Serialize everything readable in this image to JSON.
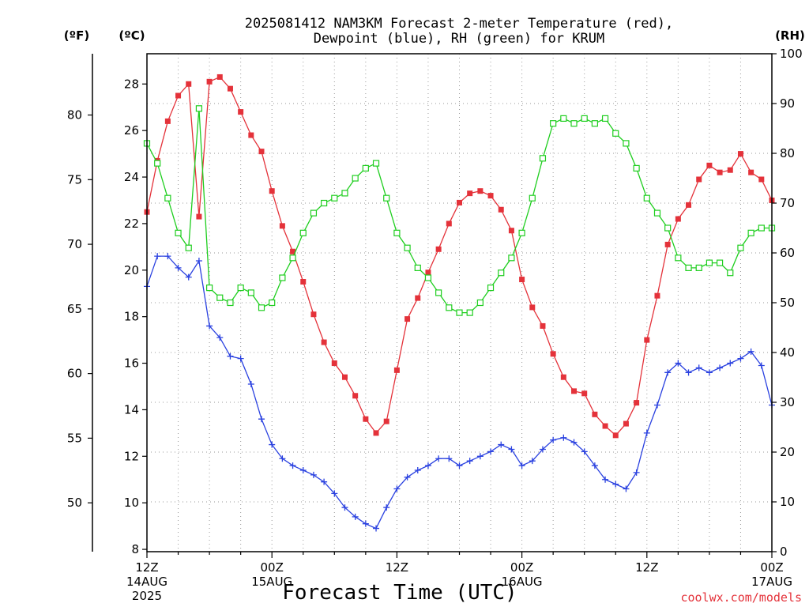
{
  "chart_data": {
    "type": "line",
    "title_lines": [
      "2025081412 NAM3KM Forecast 2-meter Temperature (red),",
      "Dewpoint (blue), RH (green) for KRUM"
    ],
    "xlabel": "Forecast Time (UTC)",
    "credit": "coolwx.com/models",
    "units": {
      "left_f": "(ºF)",
      "left_c": "(ºC)",
      "right": "(RH)"
    },
    "x_hours_range": [
      0,
      60
    ],
    "x_ticks": [
      {
        "h": 0,
        "lines": [
          "12Z",
          "14AUG",
          "2025"
        ]
      },
      {
        "h": 12,
        "lines": [
          "00Z",
          "15AUG"
        ]
      },
      {
        "h": 24,
        "lines": [
          "12Z"
        ]
      },
      {
        "h": 36,
        "lines": [
          "00Z",
          "16AUG"
        ]
      },
      {
        "h": 48,
        "lines": [
          "12Z"
        ]
      },
      {
        "h": 60,
        "lines": [
          "00Z",
          "17AUG"
        ]
      }
    ],
    "y_c_range": [
      7.9,
      29.3
    ],
    "y_c_ticks": [
      8,
      10,
      12,
      14,
      16,
      18,
      20,
      22,
      24,
      26,
      28
    ],
    "y_f_ticks": [
      50,
      55,
      60,
      65,
      70,
      75,
      80
    ],
    "y_rh_range": [
      0,
      100
    ],
    "y_rh_ticks": [
      0,
      10,
      20,
      30,
      40,
      50,
      60,
      70,
      80,
      90,
      100
    ],
    "colors": {
      "temperature": "#e4323a",
      "dewpoint": "#2a41e0",
      "rh": "#1fce1f"
    },
    "series": [
      {
        "name": "Temperature",
        "unit": "C",
        "marker": "filled-square",
        "x": [
          0,
          1,
          2,
          3,
          4,
          5,
          6,
          7,
          8,
          9,
          10,
          11,
          12,
          13,
          14,
          15,
          16,
          17,
          18,
          19,
          20,
          21,
          22,
          23,
          24,
          25,
          26,
          27,
          28,
          29,
          30,
          31,
          32,
          33,
          34,
          35,
          36,
          37,
          38,
          39,
          40,
          41,
          42,
          43,
          44,
          45,
          46,
          47,
          48,
          49,
          50,
          51,
          52,
          53,
          54,
          55,
          56,
          57,
          58,
          59,
          60
        ],
        "values": [
          22.5,
          24.7,
          26.4,
          27.5,
          28.0,
          22.3,
          28.1,
          28.3,
          27.8,
          26.8,
          25.8,
          25.1,
          23.4,
          21.9,
          20.8,
          19.5,
          18.1,
          16.9,
          16.0,
          15.4,
          14.6,
          13.6,
          13.0,
          13.5,
          15.7,
          17.9,
          18.8,
          19.9,
          20.9,
          22.0,
          22.9,
          23.3,
          23.4,
          23.2,
          22.6,
          21.7,
          19.6,
          18.4,
          17.6,
          16.4,
          15.4,
          14.8,
          14.7,
          13.8,
          13.3,
          12.9,
          13.4,
          14.3,
          17.0,
          18.9,
          21.1,
          22.2,
          22.8,
          23.9,
          24.5,
          24.2,
          24.3,
          25.0,
          24.2,
          23.9,
          23.0
        ]
      },
      {
        "name": "Dewpoint",
        "unit": "C",
        "marker": "plus",
        "x": [
          0,
          1,
          2,
          3,
          4,
          5,
          6,
          7,
          8,
          9,
          10,
          11,
          12,
          13,
          14,
          15,
          16,
          17,
          18,
          19,
          20,
          21,
          22,
          23,
          24,
          25,
          26,
          27,
          28,
          29,
          30,
          31,
          32,
          33,
          34,
          35,
          36,
          37,
          38,
          39,
          40,
          41,
          42,
          43,
          44,
          45,
          46,
          47,
          48,
          49,
          50,
          51,
          52,
          53,
          54,
          55,
          56,
          57,
          58,
          59,
          60
        ],
        "values": [
          19.3,
          20.6,
          20.6,
          20.1,
          19.7,
          20.4,
          17.6,
          17.1,
          16.3,
          16.2,
          15.1,
          13.6,
          12.5,
          11.9,
          11.6,
          11.4,
          11.2,
          10.9,
          10.4,
          9.8,
          9.4,
          9.1,
          8.9,
          9.8,
          10.6,
          11.1,
          11.4,
          11.6,
          11.9,
          11.9,
          11.6,
          11.8,
          12.0,
          12.2,
          12.5,
          12.3,
          11.6,
          11.8,
          12.3,
          12.7,
          12.8,
          12.6,
          12.2,
          11.6,
          11.0,
          10.8,
          10.6,
          11.3,
          13.0,
          14.2,
          15.6,
          16.0,
          15.6,
          15.8,
          15.6,
          15.8,
          16.0,
          16.2,
          16.5,
          15.9,
          14.2
        ]
      },
      {
        "name": "RH",
        "unit": "%",
        "marker": "open-square",
        "x": [
          0,
          1,
          2,
          3,
          4,
          5,
          6,
          7,
          8,
          9,
          10,
          11,
          12,
          13,
          14,
          15,
          16,
          17,
          18,
          19,
          20,
          21,
          22,
          23,
          24,
          25,
          26,
          27,
          28,
          29,
          30,
          31,
          32,
          33,
          34,
          35,
          36,
          37,
          38,
          39,
          40,
          41,
          42,
          43,
          44,
          45,
          46,
          47,
          48,
          49,
          50,
          51,
          52,
          53,
          54,
          55,
          56,
          57,
          58,
          59,
          60
        ],
        "values": [
          82,
          78,
          71,
          64,
          61,
          89,
          53,
          51,
          50,
          53,
          52,
          49,
          50,
          55,
          59,
          64,
          68,
          70,
          71,
          72,
          75,
          77,
          78,
          71,
          64,
          61,
          57,
          55,
          52,
          49,
          48,
          48,
          50,
          53,
          56,
          59,
          64,
          71,
          79,
          86,
          87,
          86,
          87,
          86,
          87,
          84,
          82,
          77,
          71,
          68,
          65,
          59,
          57,
          57,
          58,
          58,
          56,
          61,
          64,
          65,
          65
        ]
      }
    ]
  }
}
